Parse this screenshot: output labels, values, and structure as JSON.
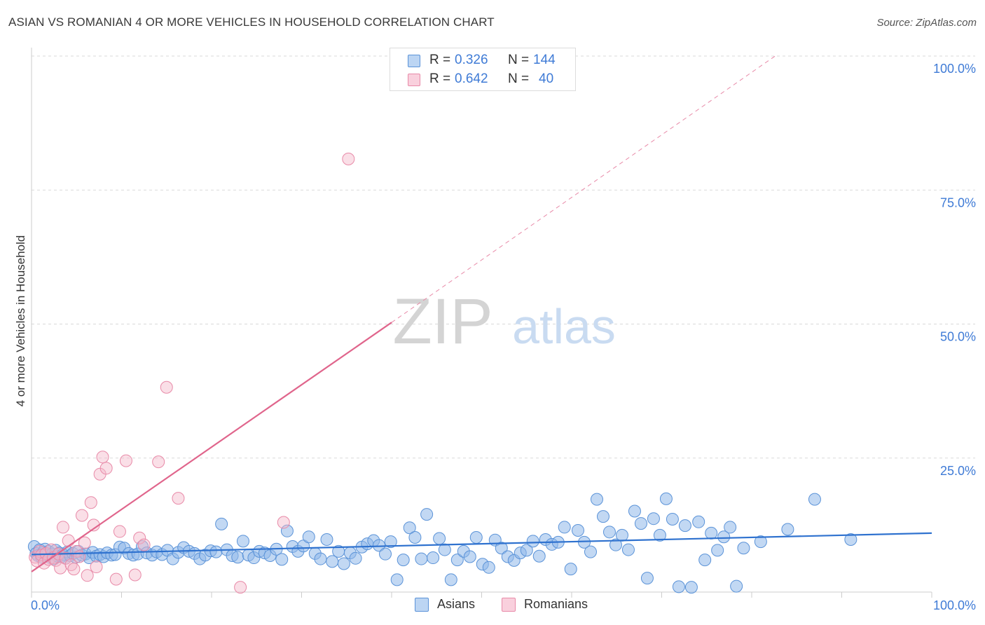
{
  "header": {
    "title": "ASIAN VS ROMANIAN 4 OR MORE VEHICLES IN HOUSEHOLD CORRELATION CHART",
    "source": "Source: ZipAtlas.com"
  },
  "watermark": {
    "zip": "ZIP",
    "atlas": "atlas"
  },
  "colors": {
    "asians": "#8fb8ea",
    "asians_stroke": "#5b93d8",
    "asians_line": "#2f72cf",
    "romanians": "#f5b8ca",
    "romanians_stroke": "#e88aa8",
    "romanians_line": "#e0658c",
    "tick_label": "#3f7bd6",
    "grid": "#d9d9d9"
  },
  "legend": {
    "rows": [
      {
        "series": "asians",
        "r_label": "R = ",
        "r_value": "0.326",
        "n_label": "N = ",
        "n_value": "144"
      },
      {
        "series": "romanians",
        "r_label": "R = ",
        "r_value": "0.642",
        "n_label": "N = ",
        "n_value": "40"
      }
    ]
  },
  "bottom_legend": {
    "asians": "Asians",
    "romanians": "Romanians"
  },
  "chart_data": {
    "type": "scatter",
    "title": "ASIAN VS ROMANIAN 4 OR MORE VEHICLES IN HOUSEHOLD CORRELATION CHART",
    "xlabel": "",
    "ylabel": "4 or more Vehicles in Household",
    "xlim": [
      0,
      100
    ],
    "ylim": [
      0,
      100
    ],
    "x_ticks": [
      0,
      100
    ],
    "x_tick_labels": [
      "0.0%",
      "100.0%"
    ],
    "y_ticks": [
      25,
      50,
      75,
      100
    ],
    "y_tick_labels": [
      "25.0%",
      "50.0%",
      "75.0%",
      "100.0%"
    ],
    "grid": true,
    "series": [
      {
        "name": "Asians",
        "r": 0.326,
        "n": 144,
        "trend": {
          "x": [
            0,
            100
          ],
          "y": [
            7.0,
            11.0
          ]
        },
        "points": [
          [
            0.3,
            8.5
          ],
          [
            0.5,
            7.2
          ],
          [
            0.7,
            6.8
          ],
          [
            0.9,
            7.9
          ],
          [
            1.1,
            6.5
          ],
          [
            1.3,
            7.4
          ],
          [
            1.5,
            8.0
          ],
          [
            1.7,
            6.9
          ],
          [
            1.9,
            7.6
          ],
          [
            2.1,
            6.4
          ],
          [
            2.3,
            7.1
          ],
          [
            2.5,
            6.2
          ],
          [
            2.7,
            7.8
          ],
          [
            2.9,
            6.7
          ],
          [
            3.1,
            7.3
          ],
          [
            3.3,
            6.6
          ],
          [
            3.5,
            7.0
          ],
          [
            3.8,
            6.3
          ],
          [
            4.0,
            7.5
          ],
          [
            4.3,
            6.8
          ],
          [
            4.6,
            7.2
          ],
          [
            4.9,
            6.5
          ],
          [
            5.2,
            7.6
          ],
          [
            5.6,
            6.9
          ],
          [
            6.0,
            7.1
          ],
          [
            6.4,
            6.4
          ],
          [
            6.8,
            7.4
          ],
          [
            7.2,
            6.7
          ],
          [
            7.6,
            7.0
          ],
          [
            8.0,
            6.6
          ],
          [
            8.4,
            7.3
          ],
          [
            8.9,
            6.9
          ],
          [
            9.3,
            7.0
          ],
          [
            9.8,
            8.4
          ],
          [
            10.3,
            8.2
          ],
          [
            10.8,
            7.2
          ],
          [
            11.3,
            6.9
          ],
          [
            11.8,
            7.1
          ],
          [
            12.3,
            8.5
          ],
          [
            12.8,
            7.3
          ],
          [
            13.4,
            6.9
          ],
          [
            13.9,
            7.5
          ],
          [
            14.5,
            7.0
          ],
          [
            15.1,
            7.8
          ],
          [
            15.7,
            6.2
          ],
          [
            16.3,
            7.4
          ],
          [
            16.9,
            8.3
          ],
          [
            17.5,
            7.6
          ],
          [
            18.1,
            7.2
          ],
          [
            18.7,
            6.2
          ],
          [
            19.3,
            6.9
          ],
          [
            19.9,
            7.7
          ],
          [
            20.5,
            7.5
          ],
          [
            21.1,
            12.7
          ],
          [
            21.7,
            7.9
          ],
          [
            22.3,
            6.8
          ],
          [
            22.9,
            6.5
          ],
          [
            23.5,
            9.5
          ],
          [
            24.1,
            6.9
          ],
          [
            24.7,
            6.4
          ],
          [
            25.3,
            7.6
          ],
          [
            25.9,
            7.3
          ],
          [
            26.5,
            6.8
          ],
          [
            27.2,
            8.0
          ],
          [
            27.8,
            6.1
          ],
          [
            28.4,
            11.4
          ],
          [
            29.0,
            8.5
          ],
          [
            29.6,
            7.6
          ],
          [
            30.2,
            8.6
          ],
          [
            30.8,
            10.3
          ],
          [
            31.5,
            7.2
          ],
          [
            32.1,
            6.2
          ],
          [
            32.8,
            9.8
          ],
          [
            33.4,
            5.7
          ],
          [
            34.1,
            7.6
          ],
          [
            34.7,
            5.3
          ],
          [
            35.4,
            7.3
          ],
          [
            36.0,
            6.3
          ],
          [
            36.7,
            8.4
          ],
          [
            37.3,
            9.0
          ],
          [
            38.0,
            9.6
          ],
          [
            38.6,
            8.7
          ],
          [
            39.3,
            7.1
          ],
          [
            39.9,
            9.4
          ],
          [
            40.6,
            2.3
          ],
          [
            41.3,
            6.0
          ],
          [
            42.0,
            12.0
          ],
          [
            42.6,
            10.2
          ],
          [
            43.3,
            6.2
          ],
          [
            43.9,
            14.5
          ],
          [
            44.6,
            6.4
          ],
          [
            45.3,
            10.0
          ],
          [
            45.9,
            7.9
          ],
          [
            46.6,
            2.3
          ],
          [
            47.3,
            6.0
          ],
          [
            48.0,
            7.6
          ],
          [
            48.7,
            6.6
          ],
          [
            49.4,
            10.2
          ],
          [
            50.1,
            5.2
          ],
          [
            50.8,
            4.6
          ],
          [
            51.5,
            9.7
          ],
          [
            52.2,
            8.2
          ],
          [
            52.9,
            6.6
          ],
          [
            53.6,
            5.9
          ],
          [
            54.3,
            7.3
          ],
          [
            55.0,
            7.8
          ],
          [
            55.7,
            9.5
          ],
          [
            56.4,
            6.7
          ],
          [
            57.1,
            9.8
          ],
          [
            57.8,
            8.9
          ],
          [
            58.5,
            9.3
          ],
          [
            59.2,
            12.1
          ],
          [
            59.9,
            4.3
          ],
          [
            60.7,
            11.5
          ],
          [
            61.4,
            9.3
          ],
          [
            62.1,
            7.5
          ],
          [
            62.8,
            17.3
          ],
          [
            63.5,
            14.1
          ],
          [
            64.2,
            11.2
          ],
          [
            64.9,
            8.8
          ],
          [
            65.6,
            10.6
          ],
          [
            66.3,
            7.9
          ],
          [
            67.0,
            15.1
          ],
          [
            67.7,
            12.8
          ],
          [
            68.4,
            2.6
          ],
          [
            69.1,
            13.7
          ],
          [
            69.8,
            10.6
          ],
          [
            70.5,
            17.4
          ],
          [
            71.2,
            13.6
          ],
          [
            71.9,
            1.0
          ],
          [
            72.6,
            12.4
          ],
          [
            73.3,
            0.9
          ],
          [
            74.1,
            13.1
          ],
          [
            74.8,
            6.0
          ],
          [
            75.5,
            11.0
          ],
          [
            76.2,
            7.8
          ],
          [
            76.9,
            10.3
          ],
          [
            77.6,
            12.1
          ],
          [
            78.3,
            1.1
          ],
          [
            79.1,
            8.2
          ],
          [
            81.0,
            9.4
          ],
          [
            84.0,
            11.7
          ],
          [
            87.0,
            17.3
          ],
          [
            91.0,
            9.8
          ]
        ]
      },
      {
        "name": "Romanians",
        "r": 0.642,
        "n": 40,
        "trend": {
          "x": [
            0,
            40
          ],
          "y": [
            3.8,
            50.3
          ]
        },
        "trend_extended": {
          "x": [
            40,
            82.6
          ],
          "y": [
            50.3,
            100
          ]
        },
        "points": [
          [
            0.4,
            6.5
          ],
          [
            0.6,
            5.8
          ],
          [
            0.9,
            7.6
          ],
          [
            1.1,
            6.9
          ],
          [
            1.4,
            5.4
          ],
          [
            1.6,
            7.2
          ],
          [
            1.9,
            6.1
          ],
          [
            2.2,
            7.9
          ],
          [
            2.4,
            6.4
          ],
          [
            2.7,
            5.9
          ],
          [
            3.0,
            7.1
          ],
          [
            3.2,
            4.5
          ],
          [
            3.5,
            12.1
          ],
          [
            3.8,
            6.3
          ],
          [
            4.1,
            9.6
          ],
          [
            4.4,
            5.1
          ],
          [
            4.7,
            4.3
          ],
          [
            5.0,
            7.6
          ],
          [
            5.3,
            6.6
          ],
          [
            5.6,
            14.3
          ],
          [
            5.9,
            9.2
          ],
          [
            6.2,
            3.1
          ],
          [
            6.6,
            16.7
          ],
          [
            6.9,
            12.5
          ],
          [
            7.2,
            4.7
          ],
          [
            7.6,
            22.0
          ],
          [
            7.9,
            25.2
          ],
          [
            8.3,
            23.1
          ],
          [
            9.4,
            2.4
          ],
          [
            9.8,
            11.3
          ],
          [
            10.5,
            24.5
          ],
          [
            11.5,
            3.2
          ],
          [
            12.0,
            10.1
          ],
          [
            12.5,
            8.8
          ],
          [
            14.1,
            24.3
          ],
          [
            15.0,
            38.2
          ],
          [
            16.3,
            17.5
          ],
          [
            23.2,
            0.9
          ],
          [
            28.0,
            13.0
          ],
          [
            35.2,
            80.8
          ]
        ]
      }
    ]
  }
}
